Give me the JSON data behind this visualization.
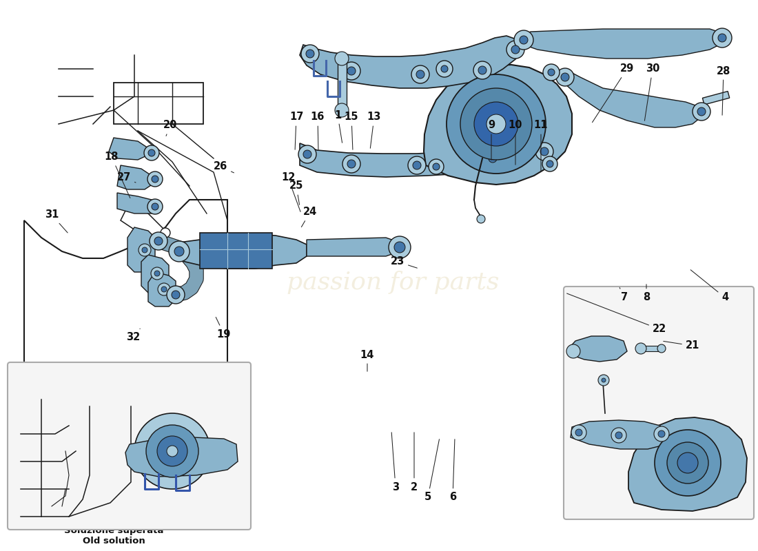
{
  "background_color": "#ffffff",
  "blue": "#8ab4cc",
  "blue2": "#6699bb",
  "blue3": "#aaccdd",
  "dark_blue": "#4477aa",
  "lc": "#1a1a1a",
  "gray_box": "#f0f0f0",
  "gray_border": "#999999",
  "watermark_color": "#e8dfc0",
  "part_fontsize": 10.5,
  "inset_label": "Soluzione superata\nOld solution",
  "labels": [
    [
      1,
      490,
      633,
      497,
      590
    ],
    [
      2,
      601,
      93,
      601,
      175
    ],
    [
      3,
      574,
      93,
      568,
      175
    ],
    [
      4,
      1052,
      368,
      1000,
      410
    ],
    [
      5,
      621,
      78,
      638,
      165
    ],
    [
      6,
      657,
      78,
      660,
      165
    ],
    [
      7,
      906,
      368,
      898,
      385
    ],
    [
      8,
      938,
      368,
      938,
      390
    ],
    [
      9,
      713,
      618,
      713,
      565
    ],
    [
      10,
      748,
      618,
      748,
      558
    ],
    [
      11,
      785,
      618,
      785,
      548
    ],
    [
      12,
      418,
      542,
      437,
      490
    ],
    [
      13,
      543,
      630,
      537,
      582
    ],
    [
      14,
      533,
      285,
      533,
      258
    ],
    [
      15,
      510,
      630,
      512,
      580
    ],
    [
      16,
      461,
      630,
      462,
      580
    ],
    [
      17,
      430,
      630,
      428,
      580
    ],
    [
      18,
      162,
      572,
      190,
      510
    ],
    [
      19,
      325,
      315,
      312,
      342
    ],
    [
      20,
      247,
      618,
      240,
      600
    ],
    [
      21,
      1005,
      298,
      960,
      305
    ],
    [
      22,
      957,
      322,
      820,
      375
    ],
    [
      23,
      577,
      420,
      608,
      410
    ],
    [
      24,
      450,
      492,
      436,
      468
    ],
    [
      25,
      430,
      530,
      435,
      500
    ],
    [
      26,
      320,
      558,
      342,
      548
    ],
    [
      27,
      180,
      542,
      197,
      535
    ],
    [
      28,
      1050,
      697,
      1048,
      630
    ],
    [
      29,
      910,
      700,
      858,
      620
    ],
    [
      30,
      947,
      700,
      935,
      622
    ],
    [
      31,
      75,
      488,
      100,
      460
    ],
    [
      32,
      193,
      310,
      205,
      325
    ]
  ]
}
